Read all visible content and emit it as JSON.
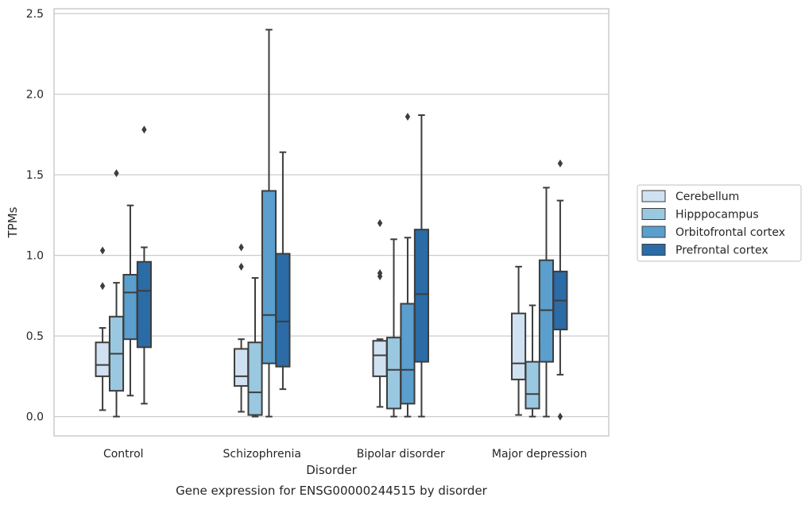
{
  "chart_data": {
    "type": "box",
    "title": "",
    "caption": "Gene expression for ENSG00000244515 by disorder",
    "xlabel": "Disorder",
    "ylabel": "TPMs",
    "ylim": [
      -0.12,
      2.53
    ],
    "yticks": [
      "0.0",
      "0.5",
      "1.0",
      "1.5",
      "2.0",
      "2.5"
    ],
    "grid": "horizontal",
    "legend_position": "right",
    "categories": [
      "Control",
      "Schizophrenia",
      "Bipolar disorder",
      "Major depression"
    ],
    "series": [
      {
        "name": "Cerebellum",
        "color": "#d0e1f2",
        "boxes": [
          {
            "whislo": 0.04,
            "q1": 0.25,
            "med": 0.32,
            "q3": 0.46,
            "whishi": 0.55,
            "fliers": [
              0.81,
              1.03
            ]
          },
          {
            "whislo": 0.03,
            "q1": 0.19,
            "med": 0.25,
            "q3": 0.42,
            "whishi": 0.48,
            "fliers": [
              0.93,
              1.05
            ]
          },
          {
            "whislo": 0.06,
            "q1": 0.25,
            "med": 0.38,
            "q3": 0.47,
            "whishi": 0.48,
            "fliers": [
              0.87,
              0.89,
              1.2
            ]
          },
          {
            "whislo": 0.01,
            "q1": 0.23,
            "med": 0.33,
            "q3": 0.64,
            "whishi": 0.93,
            "fliers": []
          }
        ]
      },
      {
        "name": "Hipppocampus",
        "color": "#9ac8e0",
        "boxes": [
          {
            "whislo": 0.0,
            "q1": 0.16,
            "med": 0.39,
            "q3": 0.62,
            "whishi": 0.83,
            "fliers": [
              1.51
            ]
          },
          {
            "whislo": 0.0,
            "q1": 0.01,
            "med": 0.15,
            "q3": 0.46,
            "whishi": 0.86,
            "fliers": []
          },
          {
            "whislo": 0.0,
            "q1": 0.05,
            "med": 0.29,
            "q3": 0.49,
            "whishi": 1.1,
            "fliers": []
          },
          {
            "whislo": 0.0,
            "q1": 0.05,
            "med": 0.14,
            "q3": 0.34,
            "whishi": 0.69,
            "fliers": []
          }
        ]
      },
      {
        "name": "Orbitofrontal cortex",
        "color": "#5a9fcd",
        "boxes": [
          {
            "whislo": 0.13,
            "q1": 0.48,
            "med": 0.77,
            "q3": 0.88,
            "whishi": 1.31,
            "fliers": []
          },
          {
            "whislo": 0.0,
            "q1": 0.33,
            "med": 0.63,
            "q3": 1.4,
            "whishi": 2.4,
            "fliers": []
          },
          {
            "whislo": 0.0,
            "q1": 0.08,
            "med": 0.29,
            "q3": 0.7,
            "whishi": 1.11,
            "fliers": [
              1.86
            ]
          },
          {
            "whislo": 0.0,
            "q1": 0.34,
            "med": 0.66,
            "q3": 0.97,
            "whishi": 1.42,
            "fliers": []
          }
        ]
      },
      {
        "name": "Prefrontal cortex",
        "color": "#2b6ba6",
        "boxes": [
          {
            "whislo": 0.08,
            "q1": 0.43,
            "med": 0.78,
            "q3": 0.96,
            "whishi": 1.05,
            "fliers": [
              1.78
            ]
          },
          {
            "whislo": 0.17,
            "q1": 0.31,
            "med": 0.59,
            "q3": 1.01,
            "whishi": 1.64,
            "fliers": []
          },
          {
            "whislo": 0.0,
            "q1": 0.34,
            "med": 0.76,
            "q3": 1.16,
            "whishi": 1.87,
            "fliers": []
          },
          {
            "whislo": 0.26,
            "q1": 0.54,
            "med": 0.72,
            "q3": 0.9,
            "whishi": 1.34,
            "fliers": [
              0.0,
              1.57
            ]
          }
        ]
      }
    ]
  }
}
